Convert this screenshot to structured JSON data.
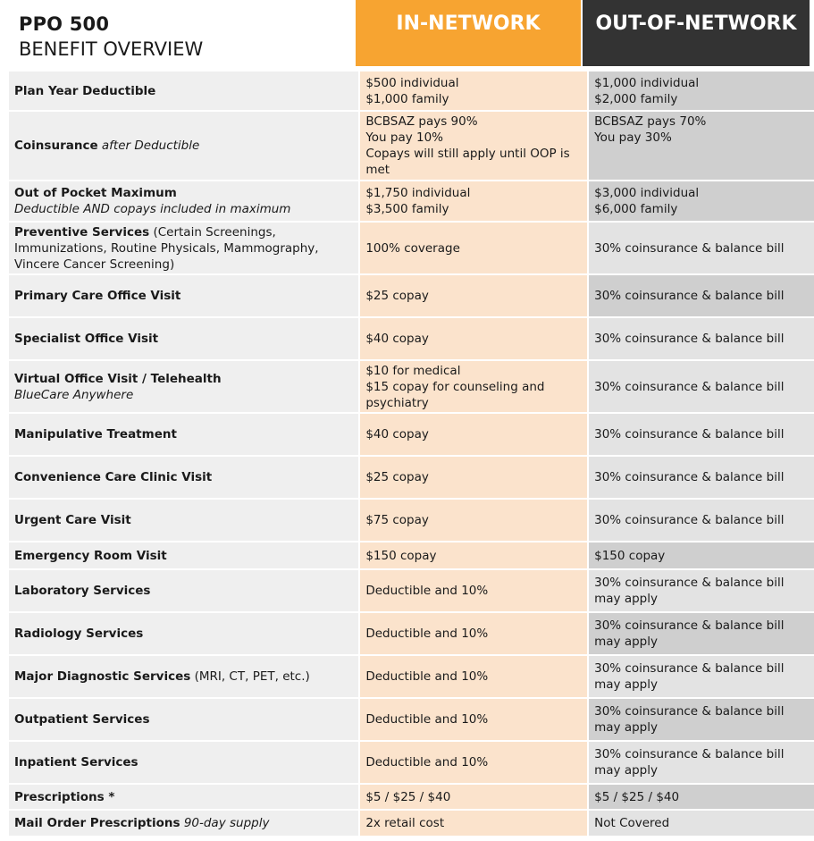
{
  "header": {
    "title": "PPO 500",
    "subtitle": "BENEFIT OVERVIEW",
    "in_network": "IN-NETWORK",
    "out_network": "OUT-OF-NETWORK"
  },
  "colors": {
    "in_network_accent": "#f7a431",
    "out_network_accent": "#333333",
    "in_cell": "#fbe3cc",
    "out_cell": "#cfcfcf",
    "label_cell": "#efefef"
  },
  "rows": [
    {
      "label": "Plan Year Deductible",
      "in": [
        "$500 individual",
        "$1,000 family"
      ],
      "out": [
        "$1,000 individual",
        "$2,000 family"
      ]
    },
    {
      "label": "Coinsurance",
      "label_italic": "after Deductible",
      "in": [
        "BCBSAZ pays 90%",
        "You pay 10%",
        "Copays will still apply until OOP is met"
      ],
      "out": [
        "BCBSAZ pays 70%",
        "You pay 30%"
      ]
    },
    {
      "label": "Out of Pocket Maximum",
      "label_sub_italic": "Deductible AND copays included in maximum",
      "in": [
        "$1,750 individual",
        "$3,500 family"
      ],
      "out": [
        "$3,000 individual",
        "$6,000 family"
      ]
    },
    {
      "label": "Preventive Services",
      "label_normal": "(Certain Screenings, Immunizations, Routine Physicals, Mammography, Vincere Cancer Screening)",
      "in": [
        "100% coverage"
      ],
      "out": [
        "30% coinsurance & balance bill"
      ]
    },
    {
      "label": "Primary Care Office Visit",
      "in": [
        "$25 copay"
      ],
      "out": [
        "30% coinsurance & balance bill"
      ]
    },
    {
      "label": "Specialist Office Visit",
      "in": [
        "$40 copay"
      ],
      "out": [
        "30% coinsurance & balance bill"
      ]
    },
    {
      "label": "Virtual Office Visit / Telehealth",
      "label_sub_italic": "BlueCare Anywhere",
      "in": [
        "$10 for medical",
        "$15 copay for counseling and psychiatry"
      ],
      "out": [
        "30% coinsurance & balance bill"
      ]
    },
    {
      "label": "Manipulative Treatment",
      "in": [
        "$40 copay"
      ],
      "out": [
        "30% coinsurance & balance bill"
      ]
    },
    {
      "label": "Convenience Care Clinic Visit",
      "in": [
        "$25 copay"
      ],
      "out": [
        "30% coinsurance & balance bill"
      ]
    },
    {
      "label": "Urgent Care Visit",
      "in": [
        "$75 copay"
      ],
      "out": [
        "30% coinsurance & balance bill"
      ]
    },
    {
      "label": "Emergency Room Visit",
      "in": [
        "$150 copay"
      ],
      "out": [
        "$150 copay"
      ]
    },
    {
      "label": "Laboratory Services",
      "in": [
        "Deductible and 10%"
      ],
      "out": [
        "30% coinsurance & balance bill may apply"
      ]
    },
    {
      "label": "Radiology Services",
      "in": [
        "Deductible and 10%"
      ],
      "out": [
        "30% coinsurance & balance bill may apply"
      ]
    },
    {
      "label": "Major Diagnostic Services",
      "label_normal": "(MRI, CT, PET, etc.)",
      "in": [
        "Deductible and 10%"
      ],
      "out": [
        "30% coinsurance & balance bill may apply"
      ]
    },
    {
      "label": "Outpatient Services",
      "in": [
        "Deductible and 10%"
      ],
      "out": [
        "30% coinsurance & balance bill may apply"
      ]
    },
    {
      "label": "Inpatient Services",
      "in": [
        "Deductible and 10%"
      ],
      "out": [
        "30% coinsurance & balance bill may apply"
      ]
    },
    {
      "label": "Prescriptions *",
      "in": [
        "$5 / $25 / $40"
      ],
      "out": [
        "$5 / $25 / $40"
      ]
    },
    {
      "label": "Mail Order Prescriptions",
      "label_italic": "90-day supply",
      "in": [
        "2x retail cost"
      ],
      "out": [
        "Not Covered"
      ]
    }
  ]
}
